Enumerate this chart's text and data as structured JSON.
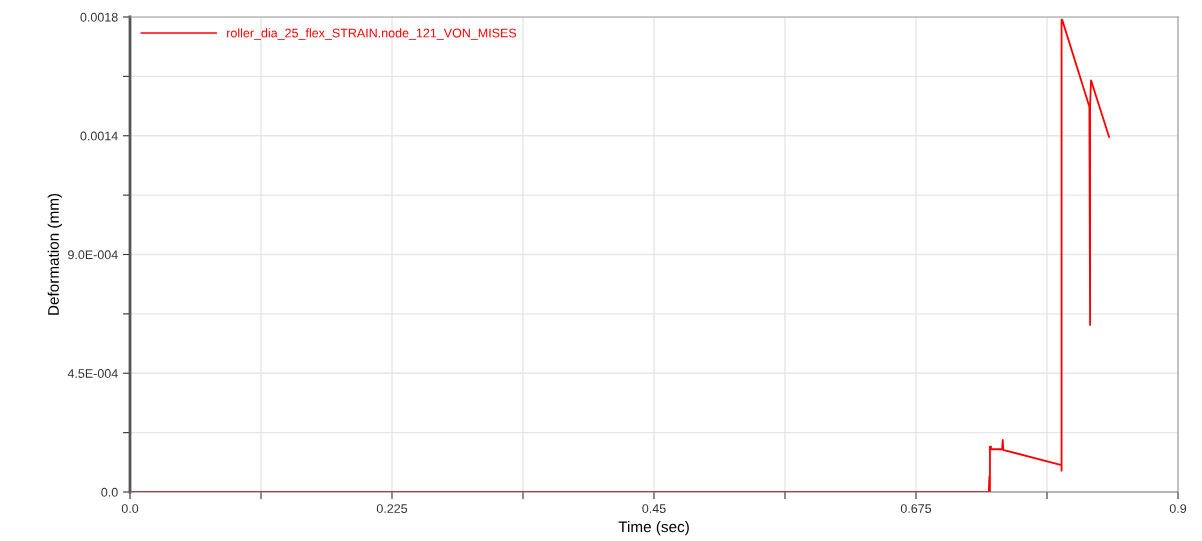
{
  "chart_data": {
    "type": "line",
    "xlabel": "Time (sec)",
    "ylabel": "Deformation (mm)",
    "xlim": [
      0,
      0.9
    ],
    "ylim": [
      0,
      0.0018
    ],
    "xticks": [
      {
        "value": 0,
        "label": "0.0"
      },
      {
        "value": 0.1125,
        "label": null
      },
      {
        "value": 0.225,
        "label": "0.225"
      },
      {
        "value": 0.3375,
        "label": null
      },
      {
        "value": 0.45,
        "label": "0.45"
      },
      {
        "value": 0.5625,
        "label": null
      },
      {
        "value": 0.675,
        "label": "0.675"
      },
      {
        "value": 0.7875,
        "label": null
      },
      {
        "value": 0.9,
        "label": "0.9"
      }
    ],
    "yticks": [
      {
        "value": 0,
        "label": "0.0"
      },
      {
        "value": 0.000225,
        "label": null
      },
      {
        "value": 0.00045,
        "label": "4.5E-004"
      },
      {
        "value": 0.000675,
        "label": null
      },
      {
        "value": 0.0009,
        "label": "9.0E-004"
      },
      {
        "value": 0.001125,
        "label": null
      },
      {
        "value": 0.00135,
        "label": "0.0014"
      },
      {
        "value": 0.001575,
        "label": null
      },
      {
        "value": 0.0018,
        "label": "0.0018"
      }
    ],
    "grid": true,
    "legend": "top left",
    "marker": "none",
    "line_style": "solid",
    "series": [
      {
        "name": "roller_dia_25_flex_STRAIN.node_121_VON_MISES",
        "color": "#ff0000",
        "x": [
          0,
          0.7375,
          0.738,
          0.738,
          0.7385,
          0.7385,
          0.7394,
          0.7394,
          0.749,
          0.7495,
          0.75,
          0.7505,
          0.8,
          0.8,
          0.8,
          0.8005,
          0.8239,
          0.8245,
          0.8245,
          0.8253,
          0.8408
        ],
        "values": [
          0,
          0,
          5.8e-05,
          0,
          0,
          0.000172,
          0.000172,
          0.000162,
          0.000162,
          0.000197,
          0.000159,
          0.000159,
          0.000102,
          8.1e-05,
          0.00179,
          0.00179,
          0.00146,
          0.000633,
          0.00146,
          0.00156,
          0.001346
        ]
      }
    ]
  }
}
